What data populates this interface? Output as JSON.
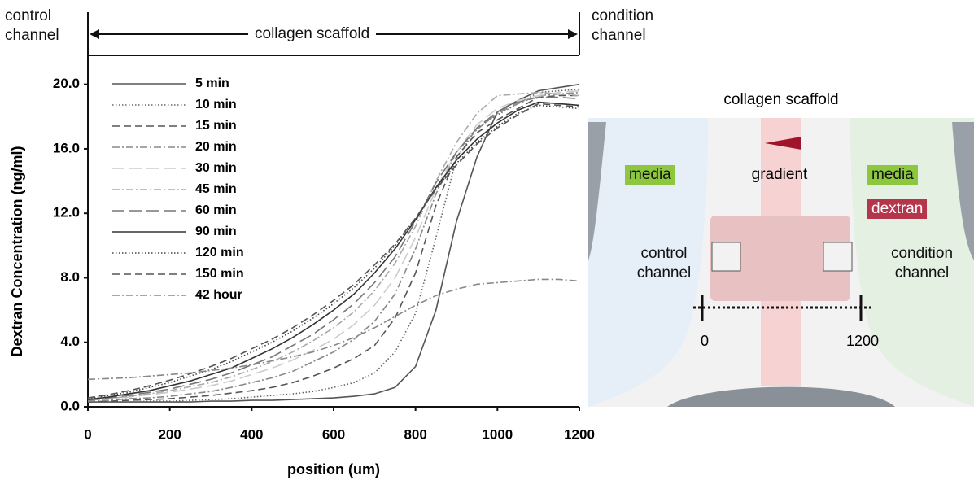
{
  "chart_data": {
    "type": "line",
    "ylabel": "Dextran Concentration (ng/ml)",
    "xlabel": "position (um)",
    "annotations": {
      "left": "control channel",
      "middle": "collagen scaffold",
      "right": "condition channel"
    },
    "x": [
      0,
      50,
      100,
      150,
      200,
      250,
      300,
      350,
      400,
      450,
      500,
      550,
      600,
      650,
      700,
      750,
      800,
      850,
      900,
      950,
      1000,
      1050,
      1100,
      1150,
      1200
    ],
    "xlim": [
      0,
      1200
    ],
    "xticks": [
      0,
      200,
      400,
      600,
      800,
      1000,
      1200
    ],
    "ylim": [
      0,
      21.8
    ],
    "yticks": [
      {
        "value": 0,
        "label": "0.0"
      },
      {
        "value": 4,
        "label": "4.0"
      },
      {
        "value": 8,
        "label": "8.0"
      },
      {
        "value": 12,
        "label": "12.0"
      },
      {
        "value": 16,
        "label": "16.0"
      },
      {
        "value": 20,
        "label": "20.0"
      }
    ],
    "series": [
      {
        "name": "5 min",
        "color": "#555555",
        "dash": "solid",
        "values": [
          0.3,
          0.3,
          0.3,
          0.3,
          0.3,
          0.3,
          0.35,
          0.35,
          0.4,
          0.4,
          0.45,
          0.5,
          0.55,
          0.65,
          0.8,
          1.2,
          2.5,
          6,
          11.5,
          15.5,
          18.3,
          19,
          19.6,
          19.8,
          20
        ]
      },
      {
        "name": "10 min",
        "color": "#666666",
        "dash": "dotted",
        "values": [
          0.3,
          0.3,
          0.3,
          0.35,
          0.35,
          0.4,
          0.45,
          0.5,
          0.6,
          0.7,
          0.8,
          0.95,
          1.2,
          1.5,
          2.1,
          3.4,
          5.8,
          10.5,
          15.4,
          17.3,
          18.1,
          18.8,
          19.5,
          19.6,
          19.7
        ]
      },
      {
        "name": "15 min",
        "color": "#555555",
        "dash": "dashed",
        "values": [
          0.3,
          0.35,
          0.4,
          0.45,
          0.5,
          0.6,
          0.7,
          0.85,
          1,
          1.2,
          1.5,
          1.9,
          2.4,
          3,
          3.8,
          5.5,
          8.3,
          12.5,
          15.5,
          17,
          17.8,
          18.5,
          19.2,
          19.3,
          19.3
        ]
      },
      {
        "name": "20 min",
        "color": "#888888",
        "dash": "dashdot",
        "values": [
          0.35,
          0.4,
          0.5,
          0.55,
          0.65,
          0.8,
          0.95,
          1.2,
          1.5,
          1.8,
          2.2,
          2.8,
          3.4,
          4.2,
          5.3,
          7,
          9.8,
          13.2,
          15.8,
          17.2,
          18.2,
          18.8,
          19.3,
          19.4,
          19.5
        ]
      },
      {
        "name": "30 min",
        "color": "#cccccc",
        "dash": "longdash",
        "values": [
          0.4,
          0.5,
          0.6,
          0.75,
          0.9,
          1.1,
          1.3,
          1.6,
          2,
          2.4,
          2.9,
          3.5,
          4.2,
          5.1,
          6.3,
          8,
          10.5,
          13.5,
          15.8,
          17.5,
          18.5,
          19,
          19.3,
          19.5,
          19.6
        ]
      },
      {
        "name": "45 min",
        "color": "#aaaaaa",
        "dash": "dashdot",
        "values": [
          0.4,
          0.5,
          0.65,
          0.8,
          1,
          1.25,
          1.5,
          1.85,
          2.3,
          2.8,
          3.4,
          4.1,
          4.9,
          5.9,
          7.2,
          8.9,
          11.2,
          14,
          16.4,
          18.2,
          19.3,
          19.4,
          19.5,
          19.4,
          19.3
        ]
      },
      {
        "name": "60 min",
        "color": "#777777",
        "dash": "longdash",
        "values": [
          0.4,
          0.55,
          0.7,
          0.9,
          1.1,
          1.4,
          1.7,
          2.1,
          2.6,
          3.1,
          3.8,
          4.5,
          5.4,
          6.4,
          7.7,
          9.3,
          11.5,
          13.9,
          15.8,
          17.3,
          18.3,
          18.9,
          19.2,
          19.2,
          19.1
        ]
      },
      {
        "name": "90 min",
        "color": "#333333",
        "dash": "solid",
        "values": [
          0.45,
          0.6,
          0.8,
          1,
          1.3,
          1.6,
          2,
          2.4,
          3,
          3.6,
          4.3,
          5.1,
          6,
          7,
          8.3,
          9.8,
          11.6,
          13.6,
          15.3,
          16.6,
          17.6,
          18.4,
          18.9,
          18.8,
          18.7
        ]
      },
      {
        "name": "120 min",
        "color": "#444444",
        "dash": "dotted",
        "values": [
          0.5,
          0.7,
          0.9,
          1.2,
          1.5,
          1.9,
          2.3,
          2.8,
          3.4,
          4,
          4.7,
          5.5,
          6.4,
          7.4,
          8.6,
          10,
          11.7,
          13.5,
          15.1,
          16.4,
          17.4,
          18.2,
          18.7,
          18.6,
          18.5
        ]
      },
      {
        "name": "150 min",
        "color": "#555555",
        "dash": "dashed",
        "values": [
          0.55,
          0.75,
          1,
          1.3,
          1.65,
          2.05,
          2.5,
          3,
          3.6,
          4.2,
          4.9,
          5.7,
          6.6,
          7.6,
          8.8,
          10.1,
          11.7,
          13.5,
          15,
          16.3,
          17.3,
          18.1,
          18.8,
          18.7,
          18.6
        ]
      },
      {
        "name": "42 hour",
        "color": "#888888",
        "dash": "dashdot",
        "values": [
          1.7,
          1.75,
          1.8,
          1.9,
          2,
          2.1,
          2.25,
          2.4,
          2.6,
          2.85,
          3.1,
          3.4,
          3.8,
          4.3,
          4.9,
          5.6,
          6.3,
          6.9,
          7.3,
          7.6,
          7.7,
          7.8,
          7.9,
          7.9,
          7.8
        ]
      }
    ]
  },
  "diagram": {
    "title": "collagen scaffold",
    "media_left": "media",
    "gradient": "gradient",
    "media_right": "media",
    "dextran": "dextran",
    "control": "control channel",
    "condition": "condition channel",
    "start": "0",
    "end": "1200"
  }
}
